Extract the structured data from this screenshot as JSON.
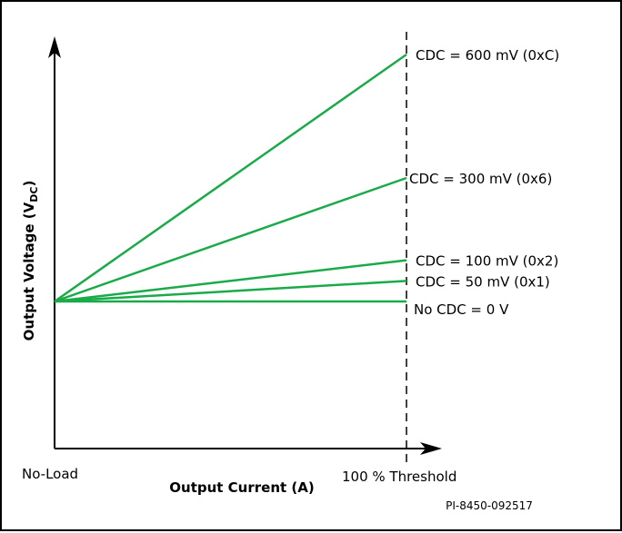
{
  "chart_data": {
    "type": "line",
    "xlabel": "Output Current (A)",
    "ylabel_main": "Output Voltage (V",
    "ylabel_sub": "DC",
    "ylabel_end": ")",
    "x_tick_labels": [
      "No-Load",
      "100 % Threshold"
    ],
    "threshold_label": "100 % Threshold",
    "series": [
      {
        "name": "No CDC = 0 V",
        "cdc_mv": 0
      },
      {
        "name": "CDC = 50 mV (0x1)",
        "cdc_mv": 50
      },
      {
        "name": "CDC = 100 mV (0x2)",
        "cdc_mv": 100
      },
      {
        "name": "CDC = 300 mV (0x6)",
        "cdc_mv": 300
      },
      {
        "name": "CDC = 600 mV (0xC)",
        "cdc_mv": 600
      }
    ],
    "line_color": "#1aaa4a",
    "footnote": "PI-8450-092517"
  }
}
